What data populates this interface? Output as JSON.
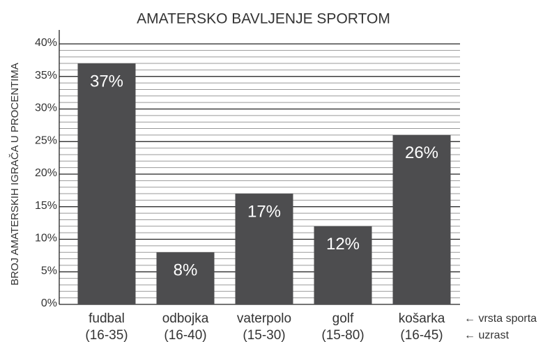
{
  "chart_data": {
    "type": "bar",
    "title": "AMATERSKO BAVLJENJE SPORTOM",
    "y_label": "BROJ AMATERSKIH IGRAČA U PROCENTIMA",
    "categories": [
      "fudbal",
      "odbojka",
      "vaterpolo",
      "golf",
      "košarka"
    ],
    "category_ranges": [
      "(16-35)",
      "(16-40)",
      "(15-30)",
      "(15-80)",
      "(16-45)"
    ],
    "annotations": [
      "← vrsta sporta",
      "← uzrast"
    ],
    "values": [
      37,
      8,
      17,
      12,
      26
    ],
    "value_labels": [
      "37%",
      "8%",
      "17%",
      "12%",
      "26%"
    ],
    "color": "#4d4d4f",
    "ylim": [
      0,
      40
    ],
    "yticks": [
      {
        "value": 0,
        "label": "0%"
      },
      {
        "value": 5,
        "label": "5%"
      },
      {
        "value": 10,
        "label": "10%"
      },
      {
        "value": 15,
        "label": "15%"
      },
      {
        "value": 20,
        "label": "20%"
      },
      {
        "value": 25,
        "label": "25%"
      },
      {
        "value": 30,
        "label": "30%"
      },
      {
        "value": 35,
        "label": "35%"
      },
      {
        "value": 40,
        "label": "40%"
      }
    ],
    "grid": true,
    "minor_grid_step": 1
  }
}
